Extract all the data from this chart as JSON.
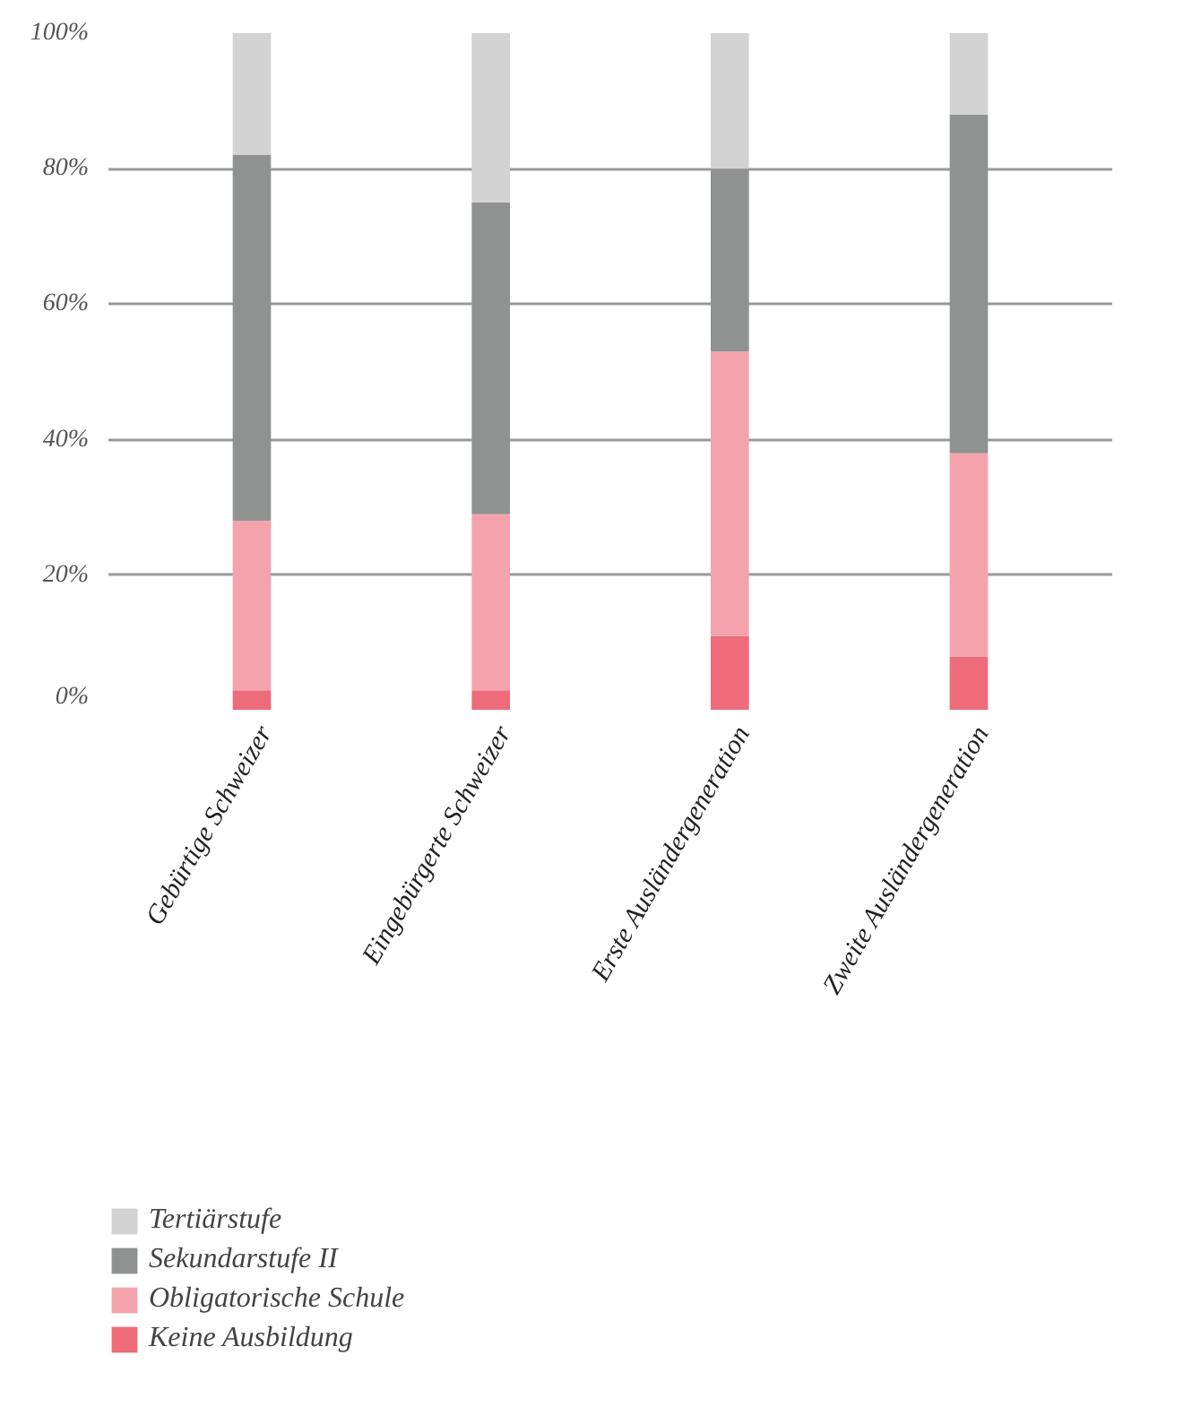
{
  "chart_data": {
    "type": "bar",
    "stacked": true,
    "categories": [
      "Gebürtige Schweizer",
      "Eingebürgerte Schweizer",
      "Erste Ausländergeneration",
      "Zweite Ausländergeneration"
    ],
    "series": [
      {
        "name": "Keine Ausbildung",
        "color": "#ee6b7a",
        "values": [
          3,
          3,
          11,
          8
        ]
      },
      {
        "name": "Obligatorische Schule",
        "color": "#f4a3ad",
        "values": [
          25,
          26,
          42,
          30
        ]
      },
      {
        "name": "Sekundarstufe II",
        "color": "#8f9291",
        "values": [
          54,
          46,
          27,
          50
        ]
      },
      {
        "name": "Tertiärstufe",
        "color": "#d3d3d3",
        "values": [
          18,
          25,
          20,
          12
        ]
      }
    ],
    "ylim": [
      0,
      100
    ],
    "yticks": [
      {
        "value": 0,
        "label": "0%"
      },
      {
        "value": 20,
        "label": "20%"
      },
      {
        "value": 40,
        "label": "40%"
      },
      {
        "value": 60,
        "label": "60%"
      },
      {
        "value": 80,
        "label": "80%"
      },
      {
        "value": 100,
        "label": "100%"
      }
    ],
    "grid": "y",
    "legend": "bottom"
  }
}
